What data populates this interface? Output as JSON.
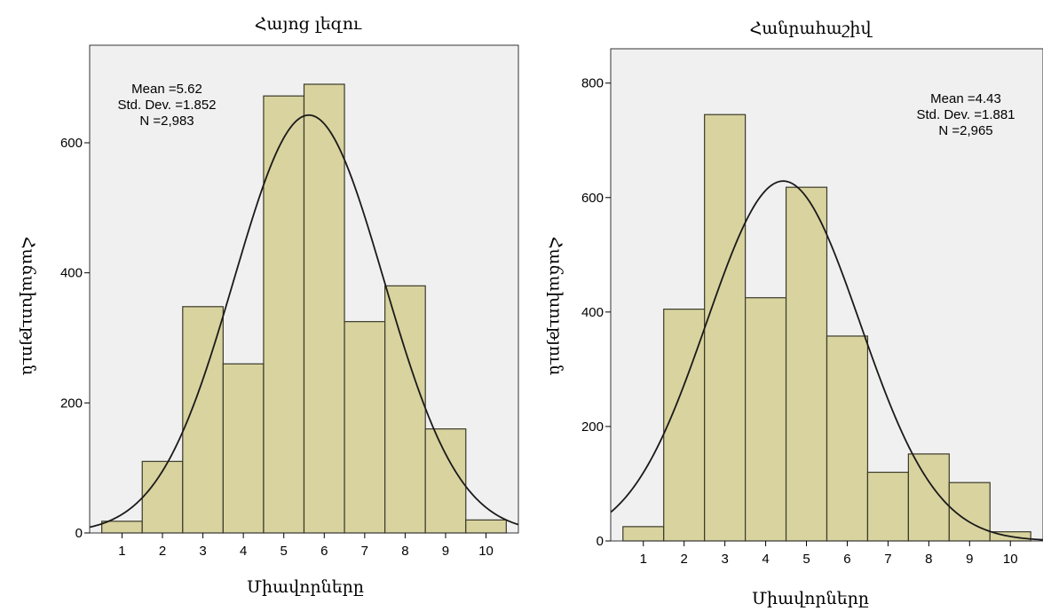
{
  "colors": {
    "plot_bg": "#f0f0f0",
    "bar_fill": "#d9d39f",
    "bar_stroke": "#3a3a2a",
    "curve": "#1a1a1a"
  },
  "chart_data": [
    {
      "type": "bar",
      "title": "Հայոց լեզու",
      "xlabel": "Միավորները",
      "ylabel": "Հաճախություն",
      "categories": [
        "1",
        "2",
        "3",
        "4",
        "5",
        "6",
        "7",
        "8",
        "9",
        "10"
      ],
      "values": [
        18,
        110,
        348,
        260,
        672,
        690,
        325,
        380,
        160,
        20
      ],
      "xlim": [
        0.2,
        10.8
      ],
      "ylim": [
        0,
        750
      ],
      "yticks": [
        0,
        200,
        400,
        600
      ],
      "stats": {
        "mean": 5.62,
        "std": 1.852,
        "n": 2983
      },
      "stat_lines": [
        "Mean =5.62",
        "Std. Dev. =1.852",
        "N =2,983"
      ],
      "stats_position": "top-left",
      "normal_curve": true
    },
    {
      "type": "bar",
      "title": "Հանրահաշիվ",
      "xlabel": "Միավորները",
      "ylabel": "Հաճախություն",
      "categories": [
        "1",
        "2",
        "3",
        "4",
        "5",
        "6",
        "7",
        "8",
        "9",
        "10"
      ],
      "values": [
        25,
        405,
        745,
        425,
        618,
        358,
        120,
        152,
        102,
        16
      ],
      "xlim": [
        0.2,
        10.8
      ],
      "ylim": [
        0,
        860
      ],
      "yticks": [
        0,
        200,
        400,
        600,
        800
      ],
      "stats": {
        "mean": 4.43,
        "std": 1.881,
        "n": 2965
      },
      "stat_lines": [
        "Mean =4.43",
        "Std. Dev. =1.881",
        "N =2,965"
      ],
      "stats_position": "top-right",
      "normal_curve": true
    }
  ]
}
